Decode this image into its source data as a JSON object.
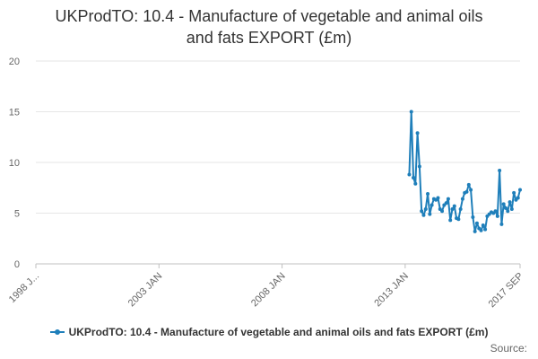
{
  "chart_data": {
    "type": "line",
    "title_lines": [
      "UKProdTO: 10.4 - Manufacture of vegetable and animal oils",
      "and fats EXPORT (£m)"
    ],
    "xlabel": "",
    "ylabel": "",
    "ylim": [
      0,
      20
    ],
    "y_ticks": [
      0,
      5,
      10,
      15,
      20
    ],
    "x_range": [
      "1998-01",
      "2017-09"
    ],
    "x_ticks": [
      {
        "label": "1998 J...",
        "date": "1998-01"
      },
      {
        "label": "2003 JAN",
        "date": "2003-01"
      },
      {
        "label": "2008 JAN",
        "date": "2008-01"
      },
      {
        "label": "2013 JAN",
        "date": "2013-01"
      },
      {
        "label": "2017 SEP",
        "date": "2017-09"
      }
    ],
    "grid": true,
    "legend_position": "bottom",
    "series": [
      {
        "name": "UKProdTO: 10.4 - Manufacture of vegetable and animal oils and fats EXPORT (£m)",
        "color": "#1f7fba",
        "points": [
          [
            "2013-03",
            8.8
          ],
          [
            "2013-04",
            15.0
          ],
          [
            "2013-05",
            8.5
          ],
          [
            "2013-06",
            7.9
          ],
          [
            "2013-07",
            12.9
          ],
          [
            "2013-08",
            9.6
          ],
          [
            "2013-09",
            5.2
          ],
          [
            "2013-10",
            4.8
          ],
          [
            "2013-11",
            5.4
          ],
          [
            "2013-12",
            6.9
          ],
          [
            "2014-01",
            4.9
          ],
          [
            "2014-02",
            5.8
          ],
          [
            "2014-03",
            6.4
          ],
          [
            "2014-04",
            6.3
          ],
          [
            "2014-05",
            6.5
          ],
          [
            "2014-06",
            5.4
          ],
          [
            "2014-07",
            5.2
          ],
          [
            "2014-08",
            5.8
          ],
          [
            "2014-09",
            6.0
          ],
          [
            "2014-10",
            6.4
          ],
          [
            "2014-11",
            4.3
          ],
          [
            "2014-12",
            5.4
          ],
          [
            "2015-01",
            5.7
          ],
          [
            "2015-02",
            4.5
          ],
          [
            "2015-03",
            4.4
          ],
          [
            "2015-04",
            5.4
          ],
          [
            "2015-05",
            6.4
          ],
          [
            "2015-06",
            7.0
          ],
          [
            "2015-07",
            7.1
          ],
          [
            "2015-08",
            7.8
          ],
          [
            "2015-09",
            7.3
          ],
          [
            "2015-10",
            4.6
          ],
          [
            "2015-11",
            3.2
          ],
          [
            "2015-12",
            4.0
          ],
          [
            "2016-01",
            3.5
          ],
          [
            "2016-02",
            3.3
          ],
          [
            "2016-03",
            3.8
          ],
          [
            "2016-04",
            3.4
          ],
          [
            "2016-05",
            4.7
          ],
          [
            "2016-06",
            4.9
          ],
          [
            "2016-07",
            5.1
          ],
          [
            "2016-08",
            5.0
          ],
          [
            "2016-09",
            5.2
          ],
          [
            "2016-10",
            4.7
          ],
          [
            "2016-11",
            9.2
          ],
          [
            "2016-12",
            3.9
          ],
          [
            "2017-01",
            5.9
          ],
          [
            "2017-02",
            5.5
          ],
          [
            "2017-03",
            5.2
          ],
          [
            "2017-04",
            6.1
          ],
          [
            "2017-05",
            5.4
          ],
          [
            "2017-06",
            7.0
          ],
          [
            "2017-07",
            6.3
          ],
          [
            "2017-08",
            6.5
          ],
          [
            "2017-09",
            7.3
          ]
        ]
      }
    ]
  },
  "legend_label": "UKProdTO: 10.4 - Manufacture of vegetable and animal oils and fats EXPORT (£m)",
  "source_label": "Source:"
}
